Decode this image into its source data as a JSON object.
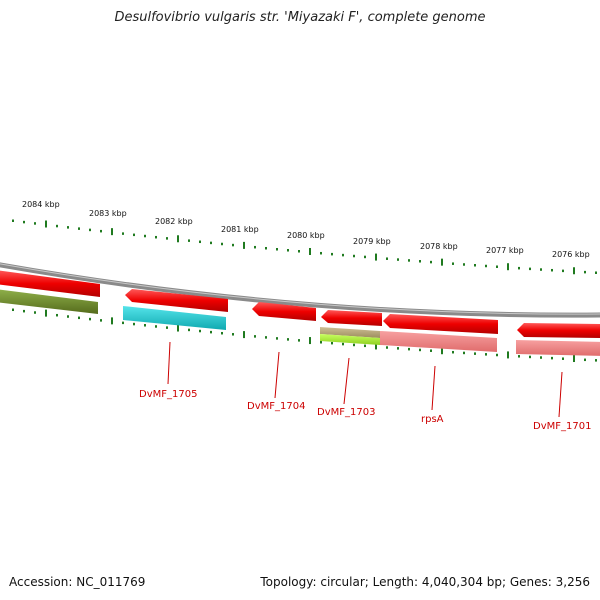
{
  "title": "Desulfovibrio vulgaris str. 'Miyazaki F', complete genome",
  "footer": {
    "accession": "Accession: NC_011769",
    "summary": "Topology: circular; Length: 4,040,304 bp; Genes: 3,256"
  },
  "scale": {
    "ticks_kbp": [
      "2084 kbp",
      "2083 kbp",
      "2082 kbp",
      "2081 kbp",
      "2080 kbp",
      "2079 kbp",
      "2078 kbp",
      "2077 kbp",
      "2076 kbp"
    ]
  },
  "genes": [
    {
      "label": "DvMF_1705"
    },
    {
      "label": "DvMF_1704"
    },
    {
      "label": "DvMF_1703"
    },
    {
      "label": "rpsA"
    },
    {
      "label": "DvMF_1701"
    }
  ],
  "colors": {
    "backbone": "#8a8a8a",
    "gene_red": "#ee0000",
    "tick_green": "#1f7a1f",
    "label_red": "#cc0000",
    "olive": "#6b8e23",
    "cyan": "#17c9d0",
    "khaki": "#b8a878",
    "lime": "#a8e830",
    "salmon": "#f08080"
  }
}
